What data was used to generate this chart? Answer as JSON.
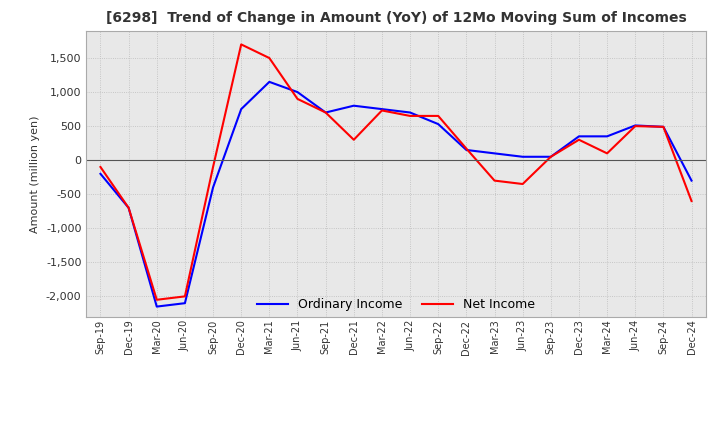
{
  "title": "[6298]  Trend of Change in Amount (YoY) of 12Mo Moving Sum of Incomes",
  "ylabel": "Amount (million yen)",
  "ylim": [
    -2300,
    1900
  ],
  "yticks": [
    -2000,
    -1500,
    -1000,
    -500,
    0,
    500,
    1000,
    1500
  ],
  "x_labels": [
    "Sep-19",
    "Dec-19",
    "Mar-20",
    "Jun-20",
    "Sep-20",
    "Dec-20",
    "Mar-21",
    "Jun-21",
    "Sep-21",
    "Dec-21",
    "Mar-22",
    "Jun-22",
    "Sep-22",
    "Dec-22",
    "Mar-23",
    "Jun-23",
    "Sep-23",
    "Dec-23",
    "Mar-24",
    "Jun-24",
    "Sep-24",
    "Dec-24"
  ],
  "ordinary_income": [
    -200,
    -700,
    -2150,
    -2100,
    -400,
    750,
    1150,
    1000,
    700,
    800,
    750,
    700,
    530,
    150,
    100,
    50,
    50,
    350,
    350,
    510,
    490,
    -300
  ],
  "net_income": [
    -100,
    -700,
    -2050,
    -2000,
    -100,
    1700,
    1500,
    900,
    700,
    300,
    730,
    650,
    650,
    170,
    -300,
    -350,
    50,
    300,
    100,
    500,
    490,
    -600
  ],
  "ordinary_color": "#0000ff",
  "net_color": "#ff0000",
  "grid_color": "#bbbbbb",
  "plot_bg_color": "#e8e8e8",
  "background_color": "#ffffff",
  "legend_labels": [
    "Ordinary Income",
    "Net Income"
  ]
}
